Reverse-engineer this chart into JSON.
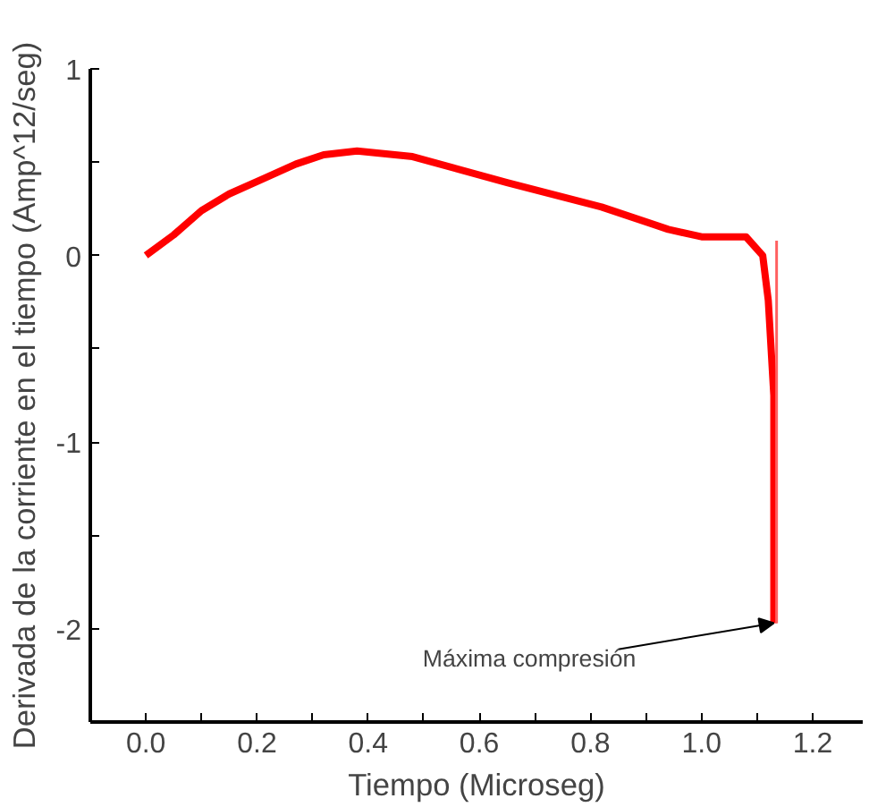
{
  "chart_data": {
    "type": "line",
    "xlabel": "Tiempo (Microseg)",
    "ylabel": "Derivada de la corriente en el tiempo (Amp^12/seg)",
    "xlim": [
      -0.1,
      1.29
    ],
    "ylim": [
      -2.5,
      1
    ],
    "xticks": [
      {
        "value": -0.1,
        "label": null
      },
      {
        "value": 0.0,
        "label": "0.0"
      },
      {
        "value": 0.1,
        "label": null
      },
      {
        "value": 0.2,
        "label": "0.2"
      },
      {
        "value": 0.3,
        "label": null
      },
      {
        "value": 0.4,
        "label": "0.4"
      },
      {
        "value": 0.5,
        "label": null
      },
      {
        "value": 0.6,
        "label": "0.6"
      },
      {
        "value": 0.7,
        "label": null
      },
      {
        "value": 0.8,
        "label": "0.8"
      },
      {
        "value": 0.9,
        "label": null
      },
      {
        "value": 1.0,
        "label": "1.0"
      },
      {
        "value": 1.1,
        "label": null
      },
      {
        "value": 1.2,
        "label": "1.2"
      }
    ],
    "yticks": [
      {
        "value": -2.5,
        "label": null
      },
      -2,
      {
        "value": -1.5,
        "label": null
      },
      -1,
      {
        "value": -0.5,
        "label": null
      },
      0,
      {
        "value": 0.5,
        "label": null
      },
      1
    ],
    "grid": false,
    "marker": "none",
    "line_style": "solid",
    "series": [
      {
        "color": "#ff0000",
        "x": [
          0,
          0.05,
          0.1,
          0.15,
          0.21,
          0.27,
          0.32,
          0.38,
          0.48,
          0.65,
          0.82,
          0.94,
          1.0,
          1.08,
          1.11,
          1.12,
          1.13,
          1.13
        ],
        "values": [
          0,
          0.11,
          0.24,
          0.33,
          0.41,
          0.49,
          0.54,
          0.56,
          0.53,
          0.39,
          0.26,
          0.14,
          0.1,
          0.1,
          0,
          -0.24,
          -0.75,
          -1.97
        ]
      },
      {
        "color": "#ff6060",
        "x": [
          1.135,
          1.135
        ],
        "values": [
          -1.97,
          0.08
        ]
      }
    ],
    "annotations": [
      {
        "text": "Máxima compresión",
        "x": 1.13,
        "y": -1.97
      }
    ]
  }
}
